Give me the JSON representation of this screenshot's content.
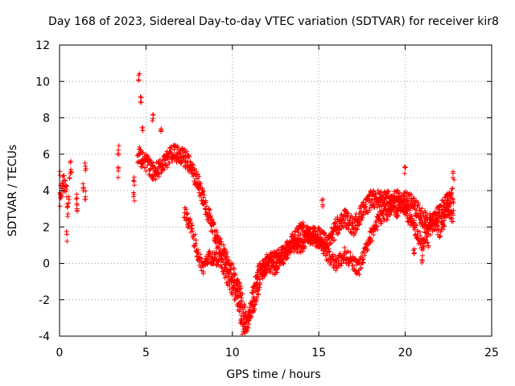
{
  "chart_data": {
    "type": "scatter",
    "title": "Day 168 of 2023, Sidereal Day-to-day VTEC variation (SDTVAR) for receiver kir8",
    "xlabel": "GPS time / hours",
    "ylabel": "SDTVAR / TECUs",
    "xlim": [
      0,
      25
    ],
    "ylim": [
      -4,
      12
    ],
    "xticks": [
      0,
      5,
      10,
      15,
      20,
      25
    ],
    "yticks": [
      -4,
      -2,
      0,
      2,
      4,
      6,
      8,
      10,
      12
    ],
    "grid": true,
    "marker": "+",
    "series": [
      {
        "name": "SDTVAR",
        "color": "#ff0000",
        "trace": [
          [
            0.0,
            3.5
          ],
          [
            0.2,
            4.5
          ],
          [
            0.4,
            4.0
          ],
          [
            0.5,
            2.5
          ],
          [
            0.6,
            5.0
          ],
          [
            0.7,
            5.5
          ],
          [
            4.5,
            6.0
          ],
          [
            5.0,
            5.5
          ],
          [
            5.5,
            5.0
          ],
          [
            6.0,
            5.5
          ],
          [
            6.5,
            6.0
          ],
          [
            7.0,
            6.0
          ],
          [
            7.5,
            5.5
          ],
          [
            8.0,
            4.5
          ],
          [
            8.5,
            3.0
          ],
          [
            9.0,
            1.5
          ],
          [
            9.5,
            0.5
          ],
          [
            10.0,
            -0.5
          ],
          [
            10.5,
            -1.8
          ],
          [
            10.8,
            -3.2
          ],
          [
            11.0,
            -3.0
          ],
          [
            11.3,
            -2.0
          ],
          [
            11.7,
            -0.5
          ],
          [
            12.0,
            0.0
          ],
          [
            12.5,
            0.2
          ],
          [
            13.0,
            0.5
          ],
          [
            13.5,
            1.2
          ],
          [
            14.0,
            1.8
          ],
          [
            14.5,
            1.5
          ],
          [
            15.0,
            1.5
          ],
          [
            15.5,
            1.0
          ],
          [
            16.0,
            2.0
          ],
          [
            16.5,
            2.5
          ],
          [
            17.0,
            2.0
          ],
          [
            17.5,
            2.8
          ],
          [
            18.0,
            3.5
          ],
          [
            18.5,
            3.5
          ],
          [
            19.0,
            3.5
          ],
          [
            19.5,
            3.0
          ],
          [
            20.0,
            3.5
          ],
          [
            20.5,
            3.2
          ],
          [
            21.0,
            2.5
          ],
          [
            21.5,
            2.0
          ],
          [
            22.0,
            2.8
          ],
          [
            22.5,
            3.5
          ],
          [
            22.8,
            3.8
          ]
        ],
        "trace2": [
          [
            7.2,
            2.8
          ],
          [
            7.6,
            2.0
          ],
          [
            8.0,
            0.5
          ],
          [
            8.3,
            -0.2
          ],
          [
            8.7,
            0.3
          ],
          [
            9.3,
            0.2
          ],
          [
            9.8,
            -1.0
          ],
          [
            10.3,
            -2.0
          ],
          [
            10.6,
            -3.6
          ],
          [
            10.9,
            -3.3
          ],
          [
            11.2,
            -1.5
          ],
          [
            11.5,
            -0.5
          ],
          [
            12.0,
            0.0
          ],
          [
            12.5,
            -0.3
          ],
          [
            13.0,
            0.5
          ],
          [
            13.5,
            1.0
          ],
          [
            14.0,
            1.0
          ],
          [
            14.5,
            1.5
          ],
          [
            15.0,
            1.2
          ],
          [
            15.5,
            0.5
          ],
          [
            16.0,
            0.0
          ],
          [
            16.5,
            0.5
          ],
          [
            17.0,
            0.0
          ],
          [
            17.3,
            -0.3
          ],
          [
            17.6,
            0.5
          ],
          [
            18.0,
            1.5
          ],
          [
            18.5,
            2.5
          ],
          [
            19.0,
            2.8
          ],
          [
            19.5,
            3.8
          ],
          [
            20.0,
            3.0
          ],
          [
            20.5,
            2.0
          ],
          [
            21.0,
            1.0
          ],
          [
            21.5,
            2.5
          ],
          [
            22.0,
            1.8
          ],
          [
            22.5,
            3.0
          ],
          [
            22.8,
            2.5
          ]
        ],
        "extras": [
          [
            3.4,
            6.2
          ],
          [
            3.4,
            5.0
          ],
          [
            4.3,
            3.7
          ],
          [
            4.3,
            4.5
          ],
          [
            4.6,
            10.2
          ],
          [
            4.7,
            9.0
          ],
          [
            4.8,
            7.3
          ],
          [
            5.4,
            7.9
          ],
          [
            5.9,
            7.5
          ],
          [
            1.4,
            4.3
          ],
          [
            1.5,
            3.8
          ],
          [
            1.5,
            5.3
          ],
          [
            1.0,
            3.5
          ],
          [
            1.0,
            3.0
          ],
          [
            0.4,
            1.5
          ],
          [
            15.2,
            3.4
          ],
          [
            0.0,
            4.9
          ],
          [
            20.0,
            5.2
          ],
          [
            20.5,
            0.8
          ],
          [
            21.0,
            0.3
          ],
          [
            21.3,
            1.1
          ],
          [
            22.8,
            4.8
          ]
        ]
      }
    ]
  }
}
